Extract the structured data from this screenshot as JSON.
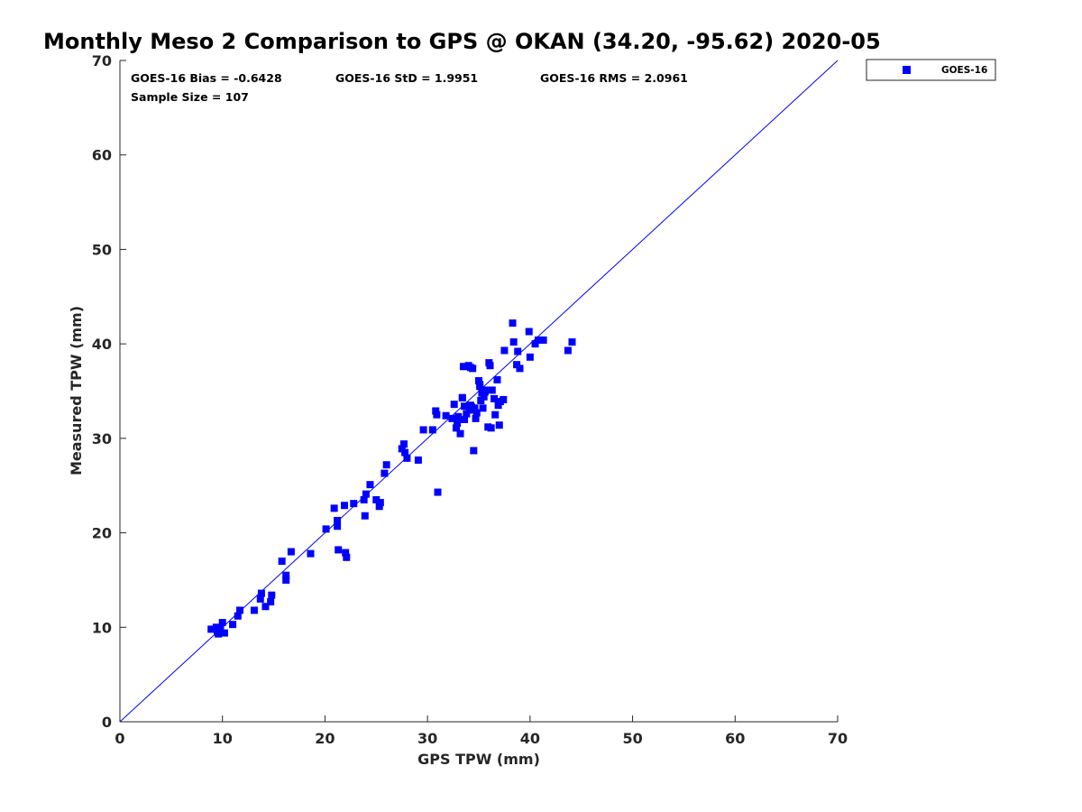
{
  "chart_data": {
    "type": "scatter",
    "title": "Monthly Meso 2 Comparison to GPS @ OKAN (34.20, -95.62) 2020-05",
    "xlabel": "GPS TPW (mm)",
    "ylabel": "Measured TPW (mm)",
    "xlim": [
      0,
      70
    ],
    "ylim": [
      0,
      70
    ],
    "xticks": [
      "0",
      "10",
      "20",
      "30",
      "40",
      "50",
      "60",
      "70"
    ],
    "yticks": [
      "0",
      "10",
      "20",
      "30",
      "40",
      "50",
      "60",
      "70"
    ],
    "grid": false,
    "legend_position": "outside-top-right",
    "reference_line": {
      "x": [
        0,
        70
      ],
      "y": [
        0,
        70
      ],
      "color": "#0000ff"
    },
    "stats": {
      "bias": "GOES-16 Bias = -0.6428",
      "std": "GOES-16 StD = 1.9951",
      "rms": "GOES-16 RMS = 2.0961",
      "sample": "Sample Size = 107"
    },
    "series": [
      {
        "name": "GOES-16",
        "color": "#0000ff",
        "marker": "square",
        "x": [
          8.9,
          9.4,
          9.6,
          9.8,
          10.0,
          10.2,
          9.5,
          11.0,
          11.5,
          11.7,
          13.1,
          13.7,
          13.8,
          14.2,
          14.7,
          14.8,
          15.8,
          16.2,
          16.2,
          16.7,
          18.6,
          20.1,
          20.9,
          21.2,
          21.2,
          21.3,
          21.9,
          22.0,
          22.1,
          22.8,
          23.8,
          23.9,
          24.0,
          24.4,
          25.0,
          25.3,
          25.4,
          25.8,
          26.0,
          27.5,
          27.7,
          27.8,
          28.0,
          29.1,
          29.6,
          30.5,
          30.8,
          30.9,
          31.0,
          32.4,
          32.6,
          32.8,
          32.9,
          33.0,
          33.1,
          33.2,
          33.4,
          33.5,
          33.6,
          33.6,
          33.8,
          34.0,
          34.1,
          34.2,
          34.3,
          34.4,
          34.5,
          34.6,
          34.7,
          34.8,
          35.0,
          35.1,
          35.2,
          35.3,
          35.4,
          35.5,
          35.6,
          35.9,
          36.0,
          36.1,
          36.3,
          36.5,
          36.6,
          36.8,
          36.9,
          37.0,
          37.1,
          37.4,
          37.5,
          38.3,
          38.4,
          38.7,
          38.8,
          39.0,
          39.9,
          40.0,
          40.5,
          40.8,
          41.3,
          43.7,
          44.1,
          35.1,
          33.4,
          34.2,
          35.6,
          36.2,
          31.8
        ],
        "y": [
          9.8,
          10.0,
          9.3,
          9.9,
          10.5,
          9.4,
          9.5,
          10.3,
          11.2,
          11.8,
          11.8,
          13.0,
          13.6,
          12.2,
          12.7,
          13.4,
          17.0,
          15.0,
          15.5,
          18.0,
          17.8,
          20.4,
          22.6,
          21.3,
          20.7,
          18.2,
          22.9,
          17.9,
          17.4,
          23.1,
          23.5,
          21.8,
          24.1,
          25.1,
          23.5,
          22.8,
          23.2,
          26.3,
          27.2,
          28.9,
          29.4,
          28.5,
          27.9,
          27.7,
          30.9,
          30.9,
          32.9,
          32.5,
          24.3,
          32.1,
          33.6,
          31.1,
          31.6,
          32.3,
          32.0,
          30.5,
          34.3,
          37.6,
          33.4,
          32.0,
          32.6,
          37.7,
          33.0,
          37.5,
          33.3,
          37.4,
          28.7,
          33.2,
          32.1,
          32.7,
          36.1,
          35.5,
          34.0,
          34.8,
          33.2,
          34.4,
          34.9,
          31.2,
          38.0,
          37.7,
          35.1,
          34.2,
          32.5,
          36.2,
          33.5,
          31.4,
          33.9,
          34.1,
          39.3,
          42.2,
          40.2,
          37.8,
          39.2,
          37.4,
          41.3,
          38.6,
          40.0,
          40.4,
          40.4,
          39.3,
          40.2,
          35.7,
          34.3,
          33.5,
          35.1,
          31.1,
          32.4
        ]
      }
    ]
  }
}
